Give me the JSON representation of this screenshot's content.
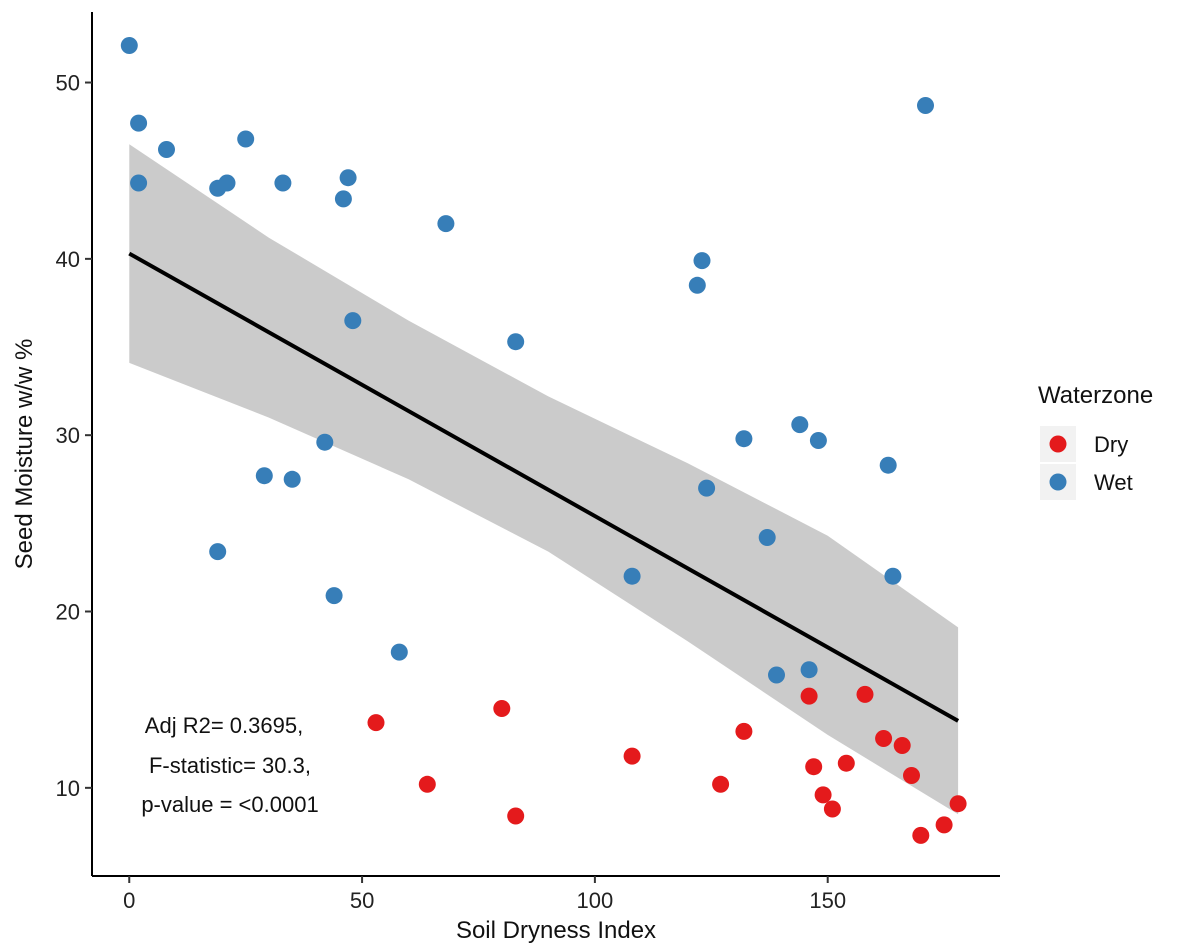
{
  "chart_data": {
    "type": "scatter",
    "title": "",
    "xlabel": "Soil Dryness Index",
    "ylabel": "Seed Moisture w/w %",
    "xlim": [
      -8,
      187
    ],
    "ylim": [
      5,
      54
    ],
    "xticks": [
      0,
      50,
      100,
      150
    ],
    "yticks": [
      10,
      20,
      30,
      40,
      50
    ],
    "grid": false,
    "legend": {
      "title": "Waterzone",
      "position": "right",
      "entries": [
        {
          "name": "Dry",
          "color": "#E41A1C"
        },
        {
          "name": "Wet",
          "color": "#377EB8"
        }
      ]
    },
    "series": [
      {
        "name": "Dry",
        "color": "#E41A1C",
        "points": [
          [
            53,
            13.7
          ],
          [
            64,
            10.2
          ],
          [
            80,
            14.5
          ],
          [
            83,
            8.4
          ],
          [
            108,
            11.8
          ],
          [
            127,
            10.2
          ],
          [
            132,
            13.2
          ],
          [
            146,
            15.2
          ],
          [
            147,
            11.2
          ],
          [
            149,
            9.6
          ],
          [
            151,
            8.8
          ],
          [
            154,
            11.4
          ],
          [
            158,
            15.3
          ],
          [
            162,
            12.8
          ],
          [
            166,
            12.4
          ],
          [
            168,
            10.7
          ],
          [
            170,
            7.3
          ],
          [
            175,
            7.9
          ],
          [
            178,
            9.1
          ]
        ]
      },
      {
        "name": "Wet",
        "color": "#377EB8",
        "points": [
          [
            0,
            52.1
          ],
          [
            2,
            47.7
          ],
          [
            2,
            44.3
          ],
          [
            8,
            46.2
          ],
          [
            19,
            44.0
          ],
          [
            21,
            44.3
          ],
          [
            25,
            46.8
          ],
          [
            33,
            44.3
          ],
          [
            46,
            43.4
          ],
          [
            47,
            44.6
          ],
          [
            48,
            36.5
          ],
          [
            68,
            42.0
          ],
          [
            19,
            23.4
          ],
          [
            29,
            27.7
          ],
          [
            35,
            27.5
          ],
          [
            42,
            29.6
          ],
          [
            44,
            20.9
          ],
          [
            58,
            17.7
          ],
          [
            83,
            35.3
          ],
          [
            108,
            22.0
          ],
          [
            122,
            38.5
          ],
          [
            123,
            39.9
          ],
          [
            124,
            27.0
          ],
          [
            132,
            29.8
          ],
          [
            137,
            24.2
          ],
          [
            139,
            16.4
          ],
          [
            144,
            30.6
          ],
          [
            146,
            16.7
          ],
          [
            148,
            29.7
          ],
          [
            163,
            28.3
          ],
          [
            164,
            22.0
          ],
          [
            171,
            48.7
          ]
        ]
      }
    ],
    "fit": {
      "type": "linear",
      "color": "#000000",
      "band_color": "#BDBDBD",
      "line": [
        [
          0,
          40.3
        ],
        [
          178,
          13.8
        ]
      ],
      "band": [
        {
          "x": 0,
          "lo": 34.1,
          "hi": 46.5
        },
        {
          "x": 30,
          "lo": 31.0,
          "hi": 41.2
        },
        {
          "x": 60,
          "lo": 27.5,
          "hi": 36.5
        },
        {
          "x": 90,
          "lo": 23.4,
          "hi": 32.2
        },
        {
          "x": 120,
          "lo": 18.3,
          "hi": 28.4
        },
        {
          "x": 150,
          "lo": 13.0,
          "hi": 24.3
        },
        {
          "x": 178,
          "lo": 8.5,
          "hi": 19.1
        }
      ]
    },
    "annotation": [
      "Adj R2= 0.3695,",
      "F-statistic= 30.3,",
      "p-value = <0.0001"
    ]
  }
}
